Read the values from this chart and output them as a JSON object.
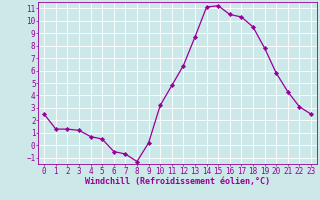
{
  "x": [
    0,
    1,
    2,
    3,
    4,
    5,
    6,
    7,
    8,
    9,
    10,
    11,
    12,
    13,
    14,
    15,
    16,
    17,
    18,
    19,
    20,
    21,
    22,
    23
  ],
  "y": [
    2.5,
    1.3,
    1.3,
    1.2,
    0.7,
    0.5,
    -0.5,
    -0.7,
    -1.3,
    0.2,
    3.2,
    4.8,
    6.4,
    8.7,
    11.1,
    11.2,
    10.5,
    10.3,
    9.5,
    7.8,
    5.8,
    4.3,
    3.1,
    2.5
  ],
  "line_color": "#990099",
  "marker": "D",
  "markersize": 2.2,
  "linewidth": 0.9,
  "bg_color": "#cce8e8",
  "grid_color": "#ffffff",
  "xlabel": "Windchill (Refroidissement éolien,°C)",
  "xlabel_fontsize": 6.0,
  "tick_color": "#990099",
  "tick_fontsize": 5.5,
  "xlim": [
    -0.5,
    23.5
  ],
  "ylim": [
    -1.5,
    11.5
  ],
  "yticks": [
    -1,
    0,
    1,
    2,
    3,
    4,
    5,
    6,
    7,
    8,
    9,
    10,
    11
  ],
  "xticks": [
    0,
    1,
    2,
    3,
    4,
    5,
    6,
    7,
    8,
    9,
    10,
    11,
    12,
    13,
    14,
    15,
    16,
    17,
    18,
    19,
    20,
    21,
    22,
    23
  ]
}
